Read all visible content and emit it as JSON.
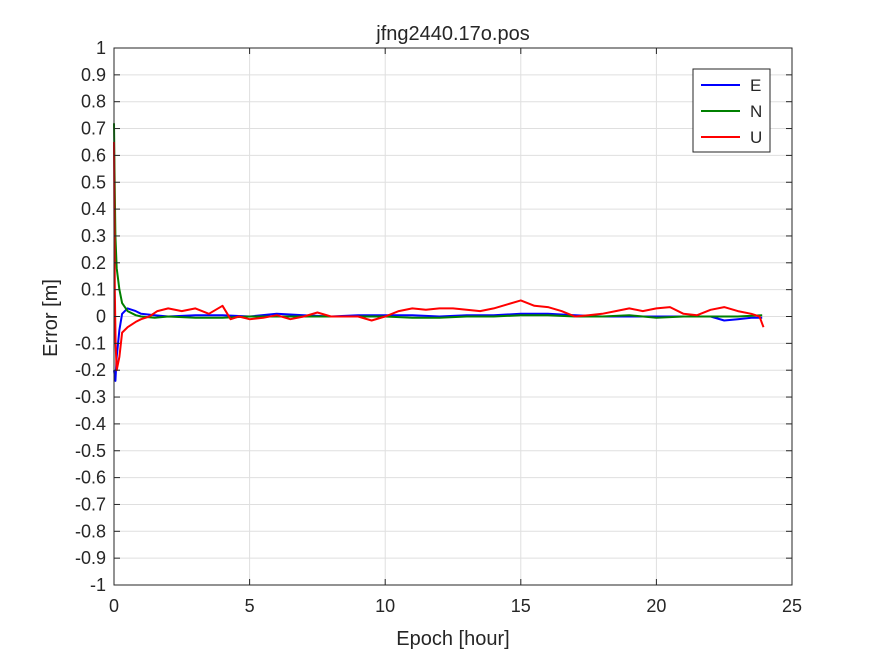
{
  "chart_data": {
    "type": "line",
    "title": "jfng2440.17o.pos",
    "xlabel": "Epoch [hour]",
    "ylabel": "Error [m]",
    "xlim": [
      0,
      25
    ],
    "ylim": [
      -1,
      1
    ],
    "xticks": [
      0,
      5,
      10,
      15,
      20,
      25
    ],
    "xtick_labels": [
      "0",
      "5",
      "10",
      "15",
      "20",
      "25"
    ],
    "yticks": [
      1,
      0.9,
      0.8,
      0.7,
      0.6,
      0.5,
      0.4,
      0.3,
      0.2,
      0.1,
      0,
      -0.1,
      -0.2,
      -0.3,
      -0.4,
      -0.5,
      -0.6,
      -0.7,
      -0.8,
      -0.9,
      -1
    ],
    "ytick_labels": [
      "1",
      "0.9",
      "0.8",
      "0.7",
      "0.6",
      "0.5",
      "0.4",
      "0.3",
      "0.2",
      "0.1",
      "0",
      "-0.1",
      "-0.2",
      "-0.3",
      "-0.4",
      "-0.5",
      "-0.6",
      "-0.7",
      "-0.8",
      "-0.9",
      "-1"
    ],
    "grid": true,
    "legend_position": "top-right",
    "series": [
      {
        "name": "E",
        "color": "#0000ff",
        "x": [
          0,
          0.05,
          0.1,
          0.2,
          0.3,
          0.5,
          0.8,
          1,
          1.5,
          2,
          3,
          4,
          5,
          6,
          7,
          8,
          9,
          10,
          11,
          12,
          13,
          14,
          15,
          16,
          17,
          18,
          19,
          20,
          21,
          22,
          22.5,
          23,
          23.5,
          23.9
        ],
        "y": [
          -0.2,
          -0.24,
          -0.15,
          -0.05,
          0.01,
          0.03,
          0.02,
          0.01,
          0.005,
          0.0,
          0.005,
          0.005,
          0.0,
          0.01,
          0.005,
          0.0,
          0.005,
          0.005,
          0.005,
          0.0,
          0.005,
          0.005,
          0.01,
          0.01,
          0.005,
          0.0,
          0.0,
          0.0,
          0.0,
          0.0,
          -0.015,
          -0.01,
          -0.005,
          -0.005
        ]
      },
      {
        "name": "N",
        "color": "#008000",
        "x": [
          0,
          0.02,
          0.05,
          0.1,
          0.2,
          0.3,
          0.5,
          0.8,
          1,
          1.5,
          2,
          3,
          4,
          5,
          6,
          7,
          8,
          9,
          10,
          11,
          12,
          13,
          14,
          15,
          16,
          17,
          18,
          19,
          20,
          21,
          22,
          23,
          23.9
        ],
        "y": [
          0.72,
          0.55,
          0.3,
          0.18,
          0.1,
          0.05,
          0.02,
          0.005,
          0.0,
          -0.005,
          0.0,
          -0.005,
          -0.005,
          0.0,
          0.0,
          0.0,
          0.0,
          0.0,
          0.0,
          -0.005,
          -0.005,
          0.0,
          0.0,
          0.005,
          0.005,
          0.0,
          0.0,
          0.005,
          -0.005,
          0.0,
          0.0,
          0.0,
          0.005
        ]
      },
      {
        "name": "U",
        "color": "#ff0000",
        "x": [
          0,
          0.03,
          0.06,
          0.1,
          0.2,
          0.3,
          0.5,
          0.8,
          1.0,
          1.3,
          1.6,
          2.0,
          2.5,
          3.0,
          3.5,
          4.0,
          4.3,
          4.6,
          5.0,
          5.5,
          6.0,
          6.5,
          7.0,
          7.5,
          8.0,
          8.5,
          9.0,
          9.5,
          10.0,
          10.5,
          11.0,
          11.5,
          12.0,
          12.5,
          13.0,
          13.5,
          14.0,
          14.5,
          15.0,
          15.5,
          16.0,
          16.5,
          17.0,
          17.5,
          18.0,
          18.5,
          19.0,
          19.5,
          20.0,
          20.5,
          21.0,
          21.5,
          22.0,
          22.5,
          23.0,
          23.5,
          23.8,
          23.95
        ],
        "y": [
          0.65,
          0.1,
          -0.1,
          -0.2,
          -0.15,
          -0.06,
          -0.04,
          -0.02,
          -0.01,
          0.0,
          0.02,
          0.03,
          0.02,
          0.03,
          0.01,
          0.04,
          -0.01,
          0.0,
          -0.01,
          -0.005,
          0.005,
          -0.01,
          0.0,
          0.015,
          0.0,
          0.0,
          0.0,
          -0.015,
          0.0,
          0.02,
          0.03,
          0.025,
          0.03,
          0.03,
          0.025,
          0.02,
          0.03,
          0.045,
          0.06,
          0.04,
          0.035,
          0.02,
          0.0,
          0.005,
          0.01,
          0.02,
          0.03,
          0.02,
          0.03,
          0.035,
          0.01,
          0.005,
          0.025,
          0.035,
          0.02,
          0.01,
          0.0,
          -0.04
        ]
      }
    ]
  }
}
